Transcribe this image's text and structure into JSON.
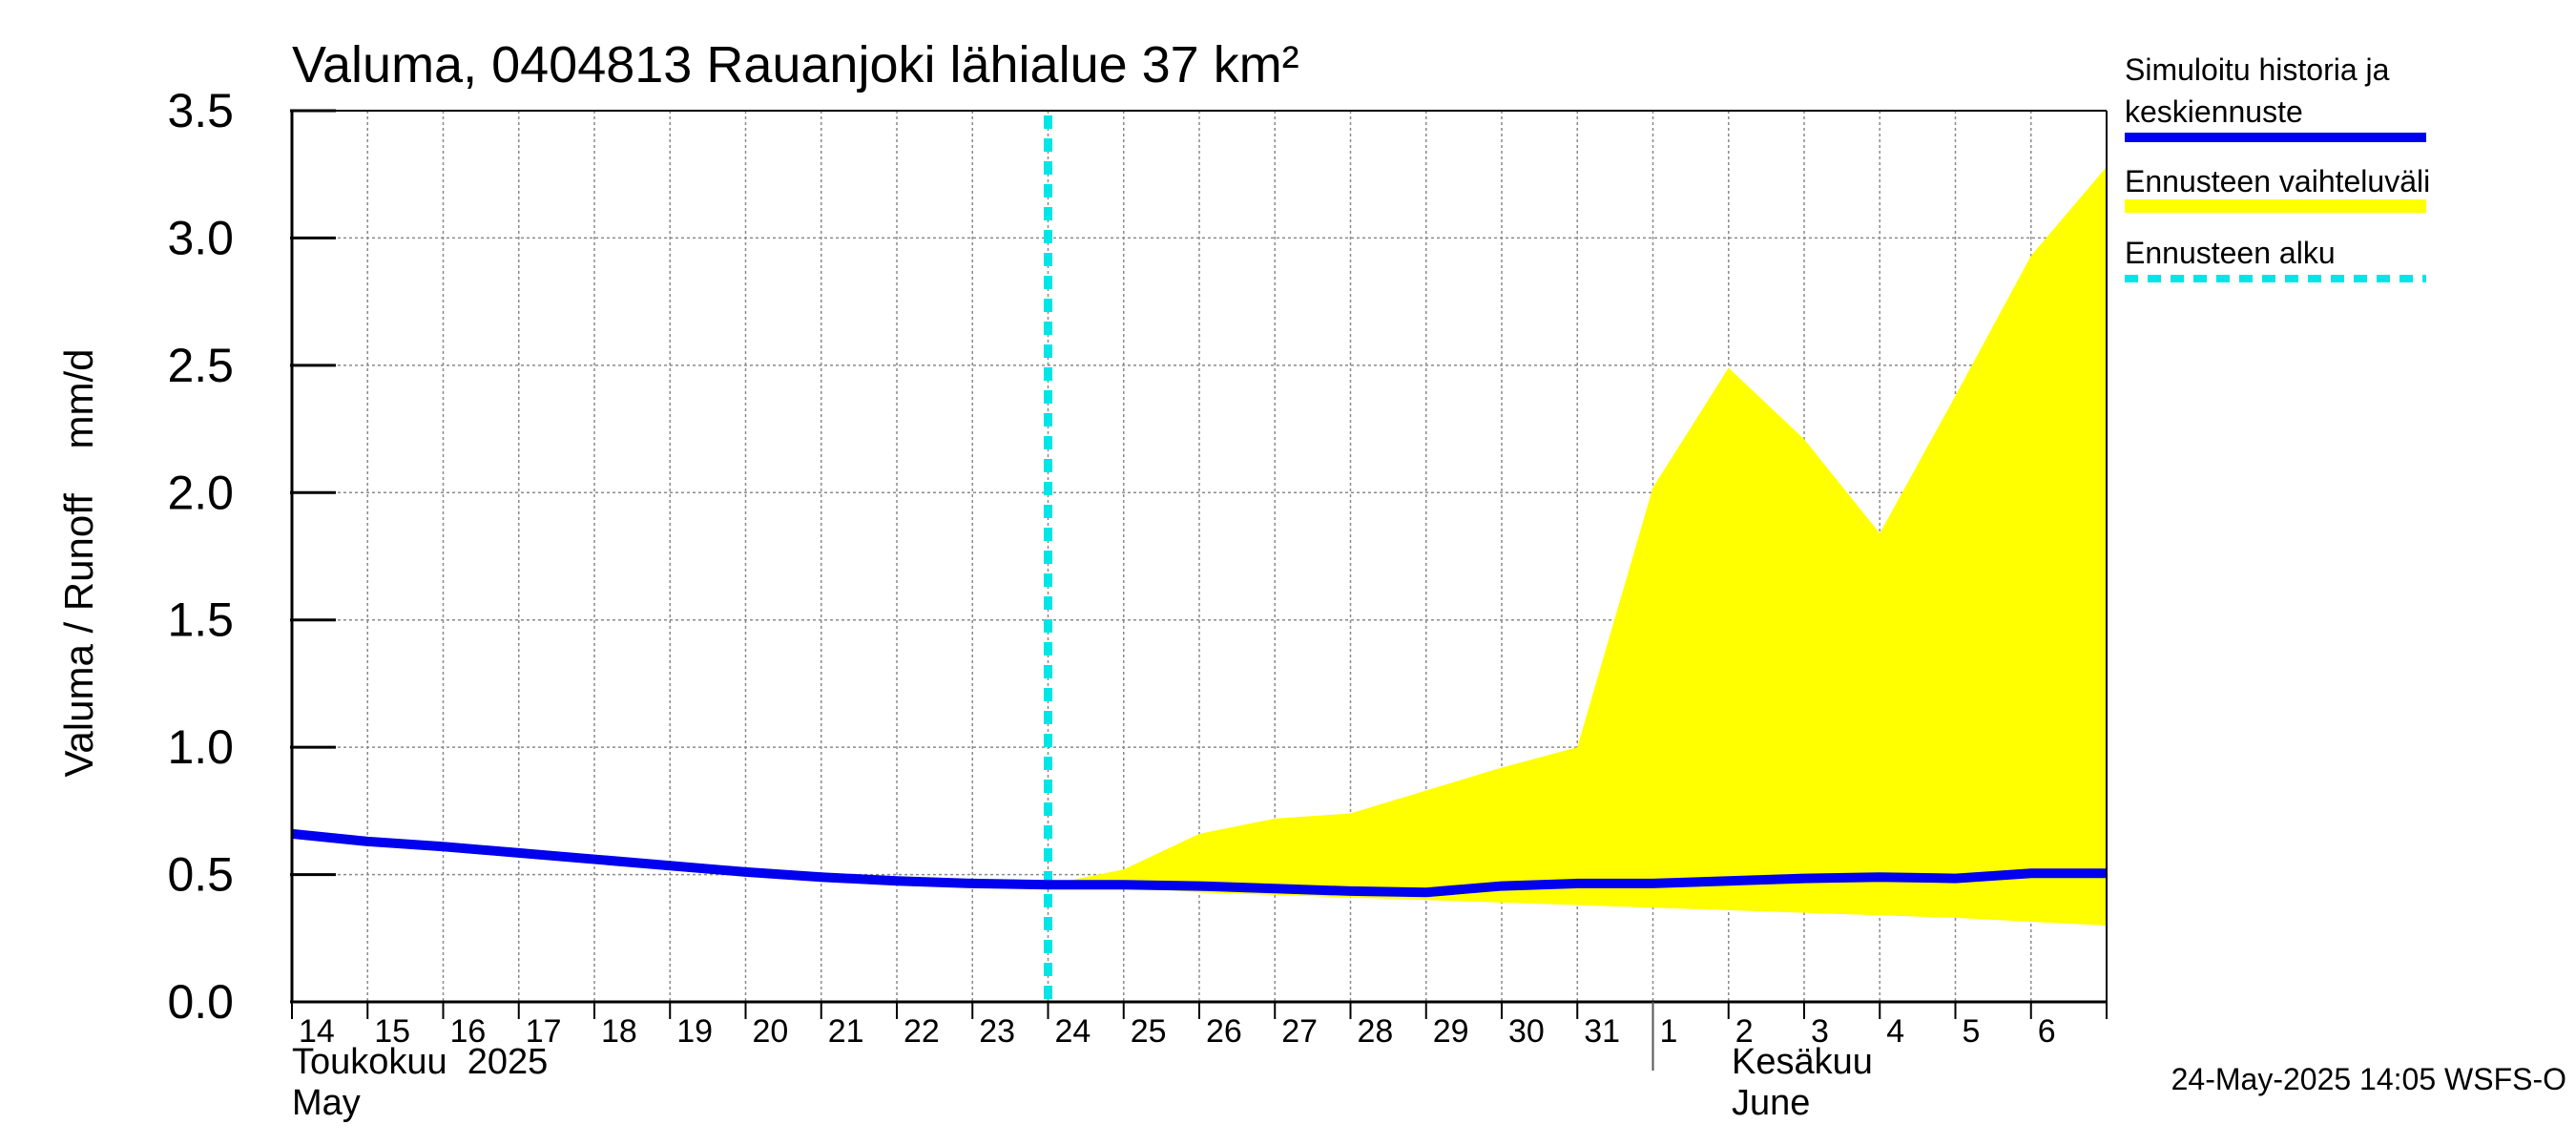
{
  "chart_data": {
    "type": "area",
    "title": "Valuma, 0404813 Rauanjoki lähialue 37 km²",
    "ylabel": "Valuma / Runoff    mm/d",
    "ylim": [
      0,
      3.5
    ],
    "yticks": [
      "0.0",
      "0.5",
      "1.0",
      "1.5",
      "2.0",
      "2.5",
      "3.0",
      "3.5"
    ],
    "ytick_values": [
      0,
      0.5,
      1.0,
      1.5,
      2.0,
      2.5,
      3.0,
      3.5
    ],
    "xlim_days": [
      0,
      24
    ],
    "day_labels": [
      "14",
      "15",
      "16",
      "17",
      "18",
      "19",
      "20",
      "21",
      "22",
      "23",
      "24",
      "25",
      "26",
      "27",
      "28",
      "29",
      "30",
      "31",
      "1",
      "2",
      "3",
      "4",
      "5",
      "6"
    ],
    "month_labels": {
      "may_fi": "Toukokuu  2025",
      "may_en": "May",
      "june_fi": "Kesäkuu",
      "june_en": "June"
    },
    "month_boundary_day": 18,
    "forecast_start_day": 10,
    "series": [
      {
        "name": "Simuloitu historia ja keskiennuste",
        "color": "#0000ee",
        "x": [
          0,
          1,
          2,
          3,
          4,
          5,
          6,
          7,
          8,
          9,
          10,
          11,
          12,
          13,
          14,
          15,
          16,
          17,
          18,
          19,
          20,
          21,
          22,
          23,
          24
        ],
        "values": [
          0.66,
          0.63,
          0.61,
          0.585,
          0.56,
          0.535,
          0.51,
          0.49,
          0.475,
          0.465,
          0.46,
          0.46,
          0.455,
          0.445,
          0.435,
          0.43,
          0.455,
          0.465,
          0.465,
          0.475,
          0.485,
          0.49,
          0.485,
          0.505,
          0.505
        ]
      },
      {
        "name": "Ennusteen vaihteluväli",
        "color": "#ffff00",
        "x": [
          10,
          11,
          12,
          13,
          14,
          15,
          16,
          17,
          18,
          19,
          20,
          21,
          22,
          23,
          24
        ],
        "upper": [
          0.46,
          0.52,
          0.66,
          0.72,
          0.74,
          0.83,
          0.92,
          1.0,
          2.02,
          2.49,
          2.21,
          1.84,
          2.38,
          2.93,
          3.28
        ],
        "lower": [
          0.46,
          0.45,
          0.43,
          0.42,
          0.41,
          0.4,
          0.39,
          0.38,
          0.37,
          0.36,
          0.35,
          0.34,
          0.33,
          0.315,
          0.3
        ]
      }
    ],
    "legend": {
      "history_line1": "Simuloitu historia ja",
      "history_line2": "keskiennuste",
      "range": "Ennusteen vaihteluväli",
      "forecast_start": "Ennusteen alku",
      "history_color": "#0000ee",
      "range_color": "#ffff00",
      "forecast_color": "#00e5e5"
    },
    "footer": "24-May-2025 14:05 WSFS-O"
  }
}
